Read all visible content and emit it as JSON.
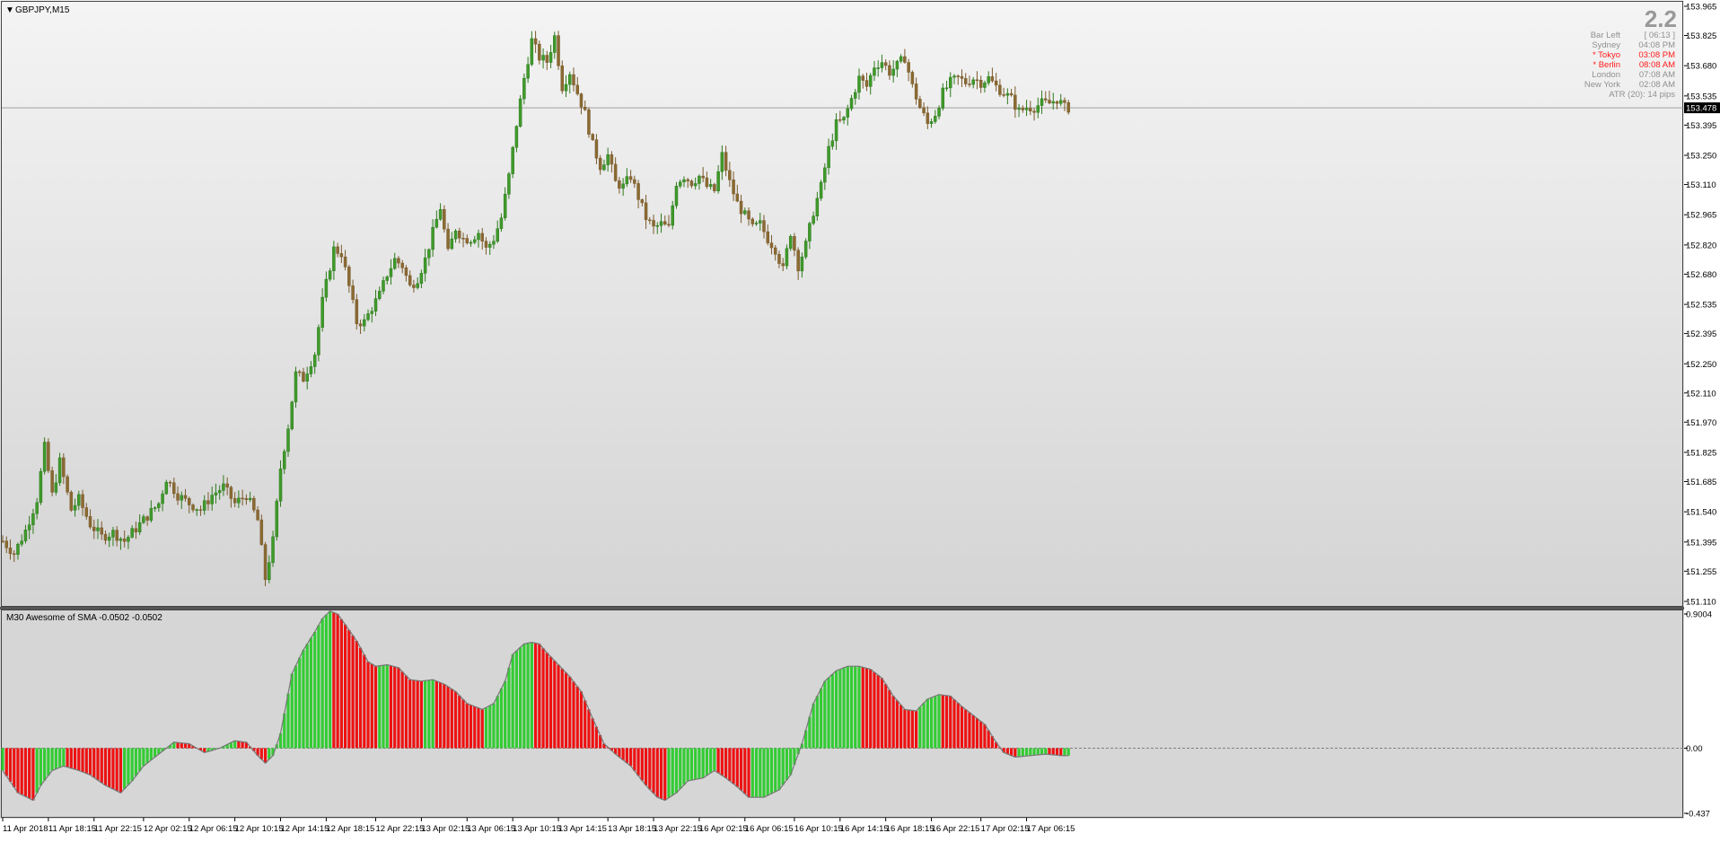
{
  "chart_data": [
    {
      "type": "candlestick",
      "title": "GBPJPY,M15",
      "symbol": "GBPJPY",
      "timeframe": "M15",
      "ylim": [
        151.11,
        153.965
      ],
      "y_ticks": [
        {
          "value": 153.965,
          "label": "153.965"
        },
        {
          "value": 153.825,
          "label": "153.825"
        },
        {
          "value": 153.68,
          "label": "153.680"
        },
        {
          "value": 153.535,
          "label": "153.535"
        },
        {
          "value": 153.395,
          "label": "153.395"
        },
        {
          "value": 153.25,
          "label": "153.250"
        },
        {
          "value": 153.11,
          "label": "153.110"
        },
        {
          "value": 152.965,
          "label": "152.965"
        },
        {
          "value": 152.82,
          "label": "152.820"
        },
        {
          "value": 152.68,
          "label": "152.680"
        },
        {
          "value": 152.535,
          "label": "152.535"
        },
        {
          "value": 152.395,
          "label": "152.395"
        },
        {
          "value": 152.25,
          "label": "152.250"
        },
        {
          "value": 152.11,
          "label": "152.110"
        },
        {
          "value": 151.97,
          "label": "151.970"
        },
        {
          "value": 151.825,
          "label": "151.825"
        },
        {
          "value": 151.685,
          "label": "151.685"
        },
        {
          "value": 151.54,
          "label": "151.540"
        },
        {
          "value": 151.395,
          "label": "151.395"
        },
        {
          "value": 151.255,
          "label": "151.255"
        },
        {
          "value": 151.11,
          "label": "151.110"
        }
      ],
      "current_price": {
        "value": 153.478,
        "label": "153.478"
      },
      "price_path": [
        [
          0,
          151.4
        ],
        [
          3,
          151.34
        ],
        [
          6,
          151.45
        ],
        [
          9,
          151.6
        ],
        [
          11,
          151.85
        ],
        [
          13,
          151.62
        ],
        [
          15,
          151.78
        ],
        [
          18,
          151.55
        ],
        [
          20,
          151.6
        ],
        [
          23,
          151.48
        ],
        [
          26,
          151.42
        ],
        [
          29,
          151.44
        ],
        [
          32,
          151.4
        ],
        [
          35,
          151.46
        ],
        [
          38,
          151.52
        ],
        [
          41,
          151.58
        ],
        [
          43,
          151.7
        ],
        [
          46,
          151.62
        ],
        [
          49,
          151.58
        ],
        [
          52,
          151.55
        ],
        [
          55,
          151.62
        ],
        [
          58,
          151.66
        ],
        [
          61,
          151.58
        ],
        [
          64,
          151.62
        ],
        [
          67,
          151.5
        ],
        [
          69,
          151.22
        ],
        [
          71,
          151.4
        ],
        [
          73,
          151.75
        ],
        [
          75,
          151.95
        ],
        [
          77,
          152.2
        ],
        [
          79,
          152.18
        ],
        [
          82,
          152.3
        ],
        [
          84,
          152.55
        ],
        [
          87,
          152.8
        ],
        [
          89,
          152.78
        ],
        [
          91,
          152.62
        ],
        [
          93,
          152.45
        ],
        [
          95,
          152.45
        ],
        [
          97,
          152.52
        ],
        [
          99,
          152.58
        ],
        [
          101,
          152.68
        ],
        [
          103,
          152.75
        ],
        [
          105,
          152.72
        ],
        [
          107,
          152.62
        ],
        [
          109,
          152.66
        ],
        [
          111,
          152.75
        ],
        [
          113,
          152.88
        ],
        [
          115,
          153.0
        ],
        [
          117,
          152.78
        ],
        [
          119,
          152.9
        ],
        [
          121,
          152.85
        ],
        [
          123,
          152.85
        ],
        [
          125,
          152.88
        ],
        [
          127,
          152.8
        ],
        [
          129,
          152.85
        ],
        [
          131,
          152.95
        ],
        [
          133,
          153.15
        ],
        [
          135,
          153.4
        ],
        [
          137,
          153.62
        ],
        [
          139,
          153.8
        ],
        [
          141,
          153.72
        ],
        [
          143,
          153.7
        ],
        [
          145,
          153.82
        ],
        [
          147,
          153.58
        ],
        [
          149,
          153.65
        ],
        [
          151,
          153.55
        ],
        [
          153,
          153.45
        ],
        [
          155,
          153.3
        ],
        [
          157,
          153.2
        ],
        [
          159,
          153.25
        ],
        [
          161,
          153.12
        ],
        [
          163,
          153.1
        ],
        [
          165,
          153.15
        ],
        [
          167,
          153.05
        ],
        [
          169,
          152.95
        ],
        [
          171,
          152.9
        ],
        [
          173,
          152.92
        ],
        [
          175,
          152.9
        ],
        [
          177,
          153.12
        ],
        [
          179,
          153.15
        ],
        [
          181,
          153.12
        ],
        [
          183,
          153.15
        ],
        [
          185,
          153.1
        ],
        [
          187,
          153.08
        ],
        [
          189,
          153.25
        ],
        [
          191,
          153.12
        ],
        [
          193,
          153.02
        ],
        [
          195,
          152.96
        ],
        [
          197,
          152.9
        ],
        [
          199,
          152.92
        ],
        [
          201,
          152.85
        ],
        [
          203,
          152.8
        ],
        [
          205,
          152.7
        ],
        [
          207,
          152.88
        ],
        [
          209,
          152.72
        ],
        [
          211,
          152.82
        ],
        [
          213,
          152.98
        ],
        [
          215,
          153.1
        ],
        [
          217,
          153.28
        ],
        [
          219,
          153.4
        ],
        [
          221,
          153.42
        ],
        [
          223,
          153.52
        ],
        [
          225,
          153.62
        ],
        [
          227,
          153.58
        ],
        [
          229,
          153.68
        ],
        [
          231,
          153.7
        ],
        [
          233,
          153.65
        ],
        [
          235,
          153.68
        ],
        [
          237,
          153.72
        ],
        [
          239,
          153.58
        ],
        [
          241,
          153.48
        ],
        [
          243,
          153.4
        ],
        [
          245,
          153.45
        ],
        [
          247,
          153.55
        ],
        [
          249,
          153.6
        ],
        [
          251,
          153.62
        ],
        [
          253,
          153.6
        ],
        [
          255,
          153.62
        ],
        [
          257,
          153.6
        ],
        [
          259,
          153.62
        ],
        [
          261,
          153.58
        ],
        [
          263,
          153.55
        ],
        [
          265,
          153.52
        ],
        [
          267,
          153.46
        ],
        [
          269,
          153.48
        ],
        [
          271,
          153.48
        ],
        [
          273,
          153.5
        ],
        [
          275,
          153.5
        ],
        [
          277,
          153.52
        ],
        [
          279,
          153.48
        ],
        [
          280,
          153.478
        ]
      ],
      "x_ticks": [
        {
          "index": 0,
          "label": "11 Apr 2018"
        },
        {
          "index": 12,
          "label": "11 Apr 18:15"
        },
        {
          "index": 24,
          "label": "11 Apr 22:15"
        },
        {
          "index": 37,
          "label": "12 Apr 02:15"
        },
        {
          "index": 49,
          "label": "12 Apr 06:15"
        },
        {
          "index": 61,
          "label": "12 Apr 10:15"
        },
        {
          "index": 73,
          "label": "12 Apr 14:15"
        },
        {
          "index": 85,
          "label": "12 Apr 18:15"
        },
        {
          "index": 98,
          "label": "12 Apr 22:15"
        },
        {
          "index": 110,
          "label": "13 Apr 02:15"
        },
        {
          "index": 122,
          "label": "13 Apr 06:15"
        },
        {
          "index": 134,
          "label": "13 Apr 10:15"
        },
        {
          "index": 146,
          "label": "13 Apr 14:15"
        },
        {
          "index": 159,
          "label": "13 Apr 18:15"
        },
        {
          "index": 171,
          "label": "13 Apr 22:15"
        },
        {
          "index": 183,
          "label": "16 Apr 02:15"
        },
        {
          "index": 195,
          "label": "16 Apr 06:15"
        },
        {
          "index": 208,
          "label": "16 Apr 10:15"
        },
        {
          "index": 220,
          "label": "16 Apr 14:15"
        },
        {
          "index": 232,
          "label": "16 Apr 18:15"
        },
        {
          "index": 244,
          "label": "16 Apr 22:15"
        },
        {
          "index": 257,
          "label": "17 Apr 02:15"
        },
        {
          "index": 269,
          "label": "17 Apr 06:15"
        }
      ],
      "bar_count": 281
    },
    {
      "type": "histogram",
      "title": "M30 Awesome of SMA -0.0502 -0.0502",
      "ylim": [
        -0.437,
        0.9004
      ],
      "y_ticks": [
        {
          "value": 0.9004,
          "label": "0.9004"
        },
        {
          "value": 0.0,
          "label": "0.00"
        },
        {
          "value": -0.437,
          "label": "-0.437"
        }
      ],
      "up_color": "#33cc33",
      "down_color": "#ee1111",
      "oscillator_path": [
        [
          0,
          -0.15
        ],
        [
          4,
          -0.3
        ],
        [
          8,
          -0.35
        ],
        [
          10,
          -0.25
        ],
        [
          13,
          -0.15
        ],
        [
          16,
          -0.12
        ],
        [
          20,
          -0.15
        ],
        [
          23,
          -0.18
        ],
        [
          27,
          -0.25
        ],
        [
          31,
          -0.3
        ],
        [
          34,
          -0.22
        ],
        [
          37,
          -0.12
        ],
        [
          41,
          -0.04
        ],
        [
          45,
          0.04
        ],
        [
          49,
          0.03
        ],
        [
          53,
          -0.03
        ],
        [
          57,
          0.0
        ],
        [
          61,
          0.05
        ],
        [
          64,
          0.04
        ],
        [
          67,
          -0.05
        ],
        [
          69,
          -0.1
        ],
        [
          71,
          -0.05
        ],
        [
          73,
          0.1
        ],
        [
          76,
          0.5
        ],
        [
          79,
          0.66
        ],
        [
          82,
          0.78
        ],
        [
          84,
          0.87
        ],
        [
          86,
          0.92
        ],
        [
          88,
          0.9
        ],
        [
          90,
          0.83
        ],
        [
          93,
          0.72
        ],
        [
          96,
          0.58
        ],
        [
          98,
          0.55
        ],
        [
          101,
          0.56
        ],
        [
          104,
          0.54
        ],
        [
          107,
          0.46
        ],
        [
          110,
          0.45
        ],
        [
          113,
          0.46
        ],
        [
          116,
          0.43
        ],
        [
          119,
          0.38
        ],
        [
          122,
          0.3
        ],
        [
          126,
          0.26
        ],
        [
          129,
          0.3
        ],
        [
          132,
          0.45
        ],
        [
          134,
          0.63
        ],
        [
          137,
          0.7
        ],
        [
          139,
          0.71
        ],
        [
          141,
          0.7
        ],
        [
          143,
          0.64
        ],
        [
          146,
          0.56
        ],
        [
          149,
          0.48
        ],
        [
          152,
          0.38
        ],
        [
          155,
          0.2
        ],
        [
          158,
          0.03
        ],
        [
          161,
          -0.04
        ],
        [
          165,
          -0.12
        ],
        [
          169,
          -0.25
        ],
        [
          172,
          -0.33
        ],
        [
          174,
          -0.35
        ],
        [
          177,
          -0.3
        ],
        [
          180,
          -0.22
        ],
        [
          184,
          -0.2
        ],
        [
          187,
          -0.15
        ],
        [
          190,
          -0.2
        ],
        [
          193,
          -0.26
        ],
        [
          196,
          -0.33
        ],
        [
          200,
          -0.33
        ],
        [
          204,
          -0.28
        ],
        [
          207,
          -0.18
        ],
        [
          210,
          0.03
        ],
        [
          213,
          0.3
        ],
        [
          216,
          0.45
        ],
        [
          219,
          0.52
        ],
        [
          222,
          0.55
        ],
        [
          225,
          0.55
        ],
        [
          228,
          0.53
        ],
        [
          231,
          0.47
        ],
        [
          234,
          0.35
        ],
        [
          237,
          0.26
        ],
        [
          240,
          0.25
        ],
        [
          243,
          0.33
        ],
        [
          246,
          0.36
        ],
        [
          249,
          0.35
        ],
        [
          252,
          0.28
        ],
        [
          255,
          0.22
        ],
        [
          258,
          0.16
        ],
        [
          261,
          0.04
        ],
        [
          263,
          -0.03
        ],
        [
          266,
          -0.06
        ],
        [
          270,
          -0.05
        ],
        [
          274,
          -0.04
        ],
        [
          278,
          -0.05
        ],
        [
          280,
          -0.05
        ]
      ],
      "bar_count": 281
    }
  ],
  "overlay": {
    "spread": "2.2",
    "bar_left_label": "Bar Left",
    "bar_left_value": "[ 06:13 ]",
    "sessions": [
      {
        "name": "Sydney",
        "time": "04:08 PM",
        "color": "#909090"
      },
      {
        "name": "* Tokyo",
        "time": "03:08 PM",
        "color": "#ff1a1a"
      },
      {
        "name": "* Berlin",
        "time": "08:08 AM",
        "color": "#ff1a1a"
      },
      {
        "name": "London",
        "time": "07:08 AM",
        "color": "#909090"
      },
      {
        "name": "New York",
        "time": "02:08 AM",
        "color": "#909090"
      }
    ],
    "atr": "ATR (20): 14 pips"
  },
  "colors": {
    "candle_up": "#2e7a1e",
    "candle_down": "#7a5a2a",
    "axis_text": "#000000",
    "price_line": "#a0a0a0"
  }
}
